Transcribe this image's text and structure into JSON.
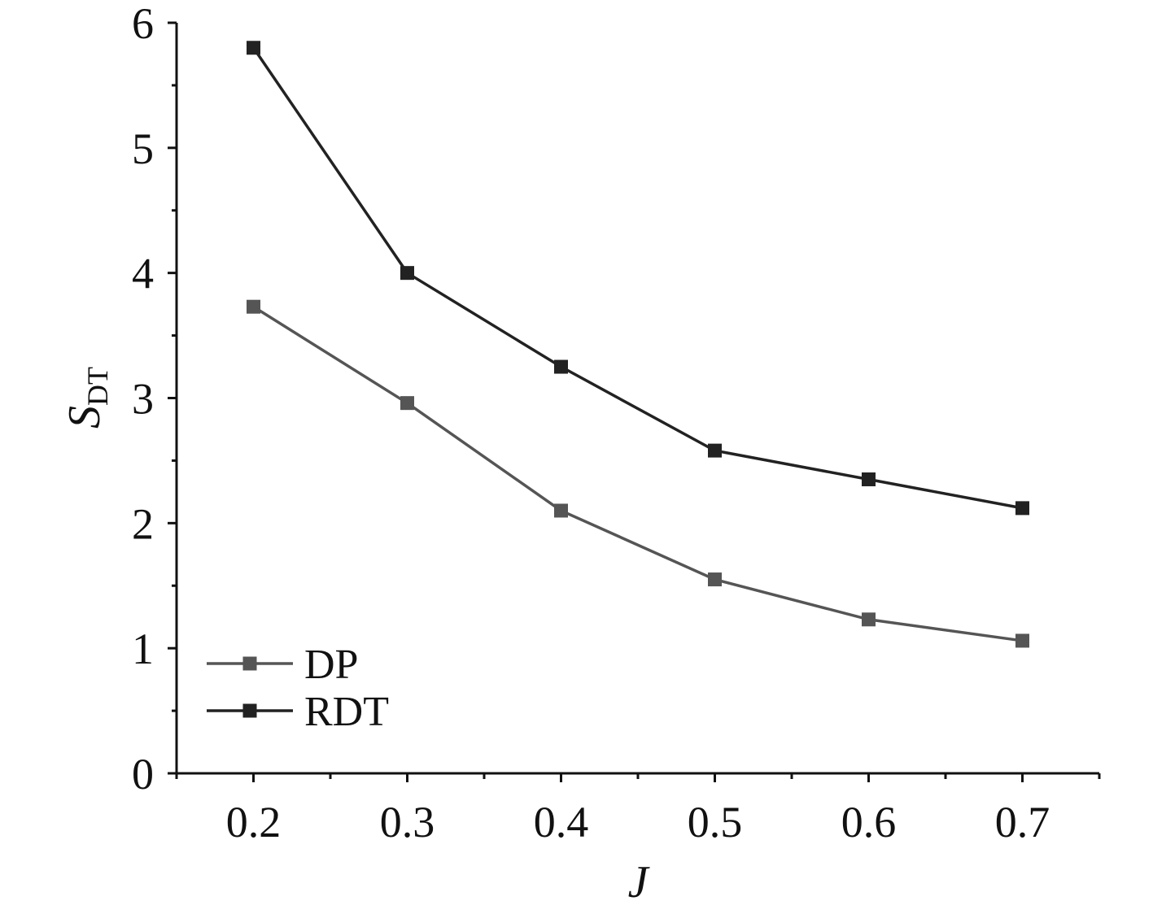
{
  "chart_data": {
    "type": "line",
    "xlabel": "J",
    "ylabel_main": "S",
    "ylabel_sub": "DT",
    "x": [
      0.2,
      0.3,
      0.4,
      0.5,
      0.6,
      0.7
    ],
    "x_ticks": [
      "0.2",
      "0.3",
      "0.4",
      "0.5",
      "0.6",
      "0.7"
    ],
    "y_ticks": [
      "0",
      "1",
      "2",
      "3",
      "4",
      "5",
      "6"
    ],
    "xlim": [
      0.15,
      0.75
    ],
    "ylim": [
      0,
      6
    ],
    "grid": false,
    "legend_position": "bottom-left",
    "series": [
      {
        "name": "DP",
        "color": "#555555",
        "marker": "square",
        "values": [
          3.73,
          2.96,
          2.1,
          1.55,
          1.23,
          1.06
        ]
      },
      {
        "name": "RDT",
        "color": "#222222",
        "marker": "square",
        "values": [
          5.8,
          4.0,
          3.25,
          2.58,
          2.35,
          2.12
        ]
      }
    ]
  }
}
